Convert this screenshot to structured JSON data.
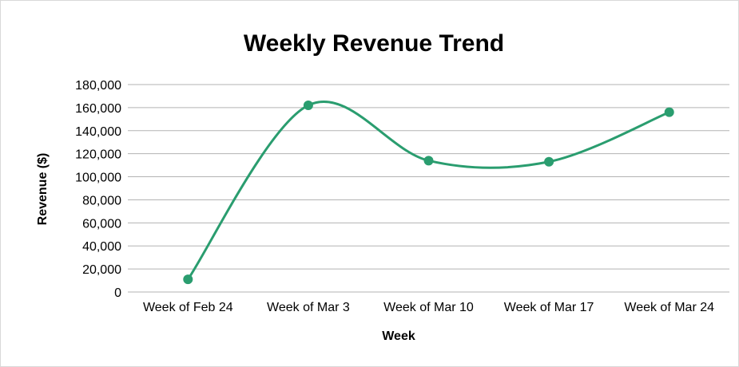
{
  "chart_data": {
    "type": "line",
    "title": "Weekly Revenue Trend",
    "xlabel": "Week",
    "ylabel": "Revenue ($)",
    "categories": [
      "Week of Feb 24",
      "Week of Mar 3",
      "Week of Mar 10",
      "Week of Mar 17",
      "Week of Mar 24"
    ],
    "series": [
      {
        "values": [
          11000,
          162000,
          114000,
          113000,
          156000
        ],
        "color": "#2a9d6f"
      }
    ],
    "ylim": [
      0,
      180000
    ],
    "yticks": [
      "0",
      "20,000",
      "40,000",
      "60,000",
      "80,000",
      "100,000",
      "120,000",
      "140,000",
      "160,000",
      "180,000"
    ],
    "smooth": true,
    "markers": true,
    "grid": "horizontal",
    "legend": "none"
  }
}
